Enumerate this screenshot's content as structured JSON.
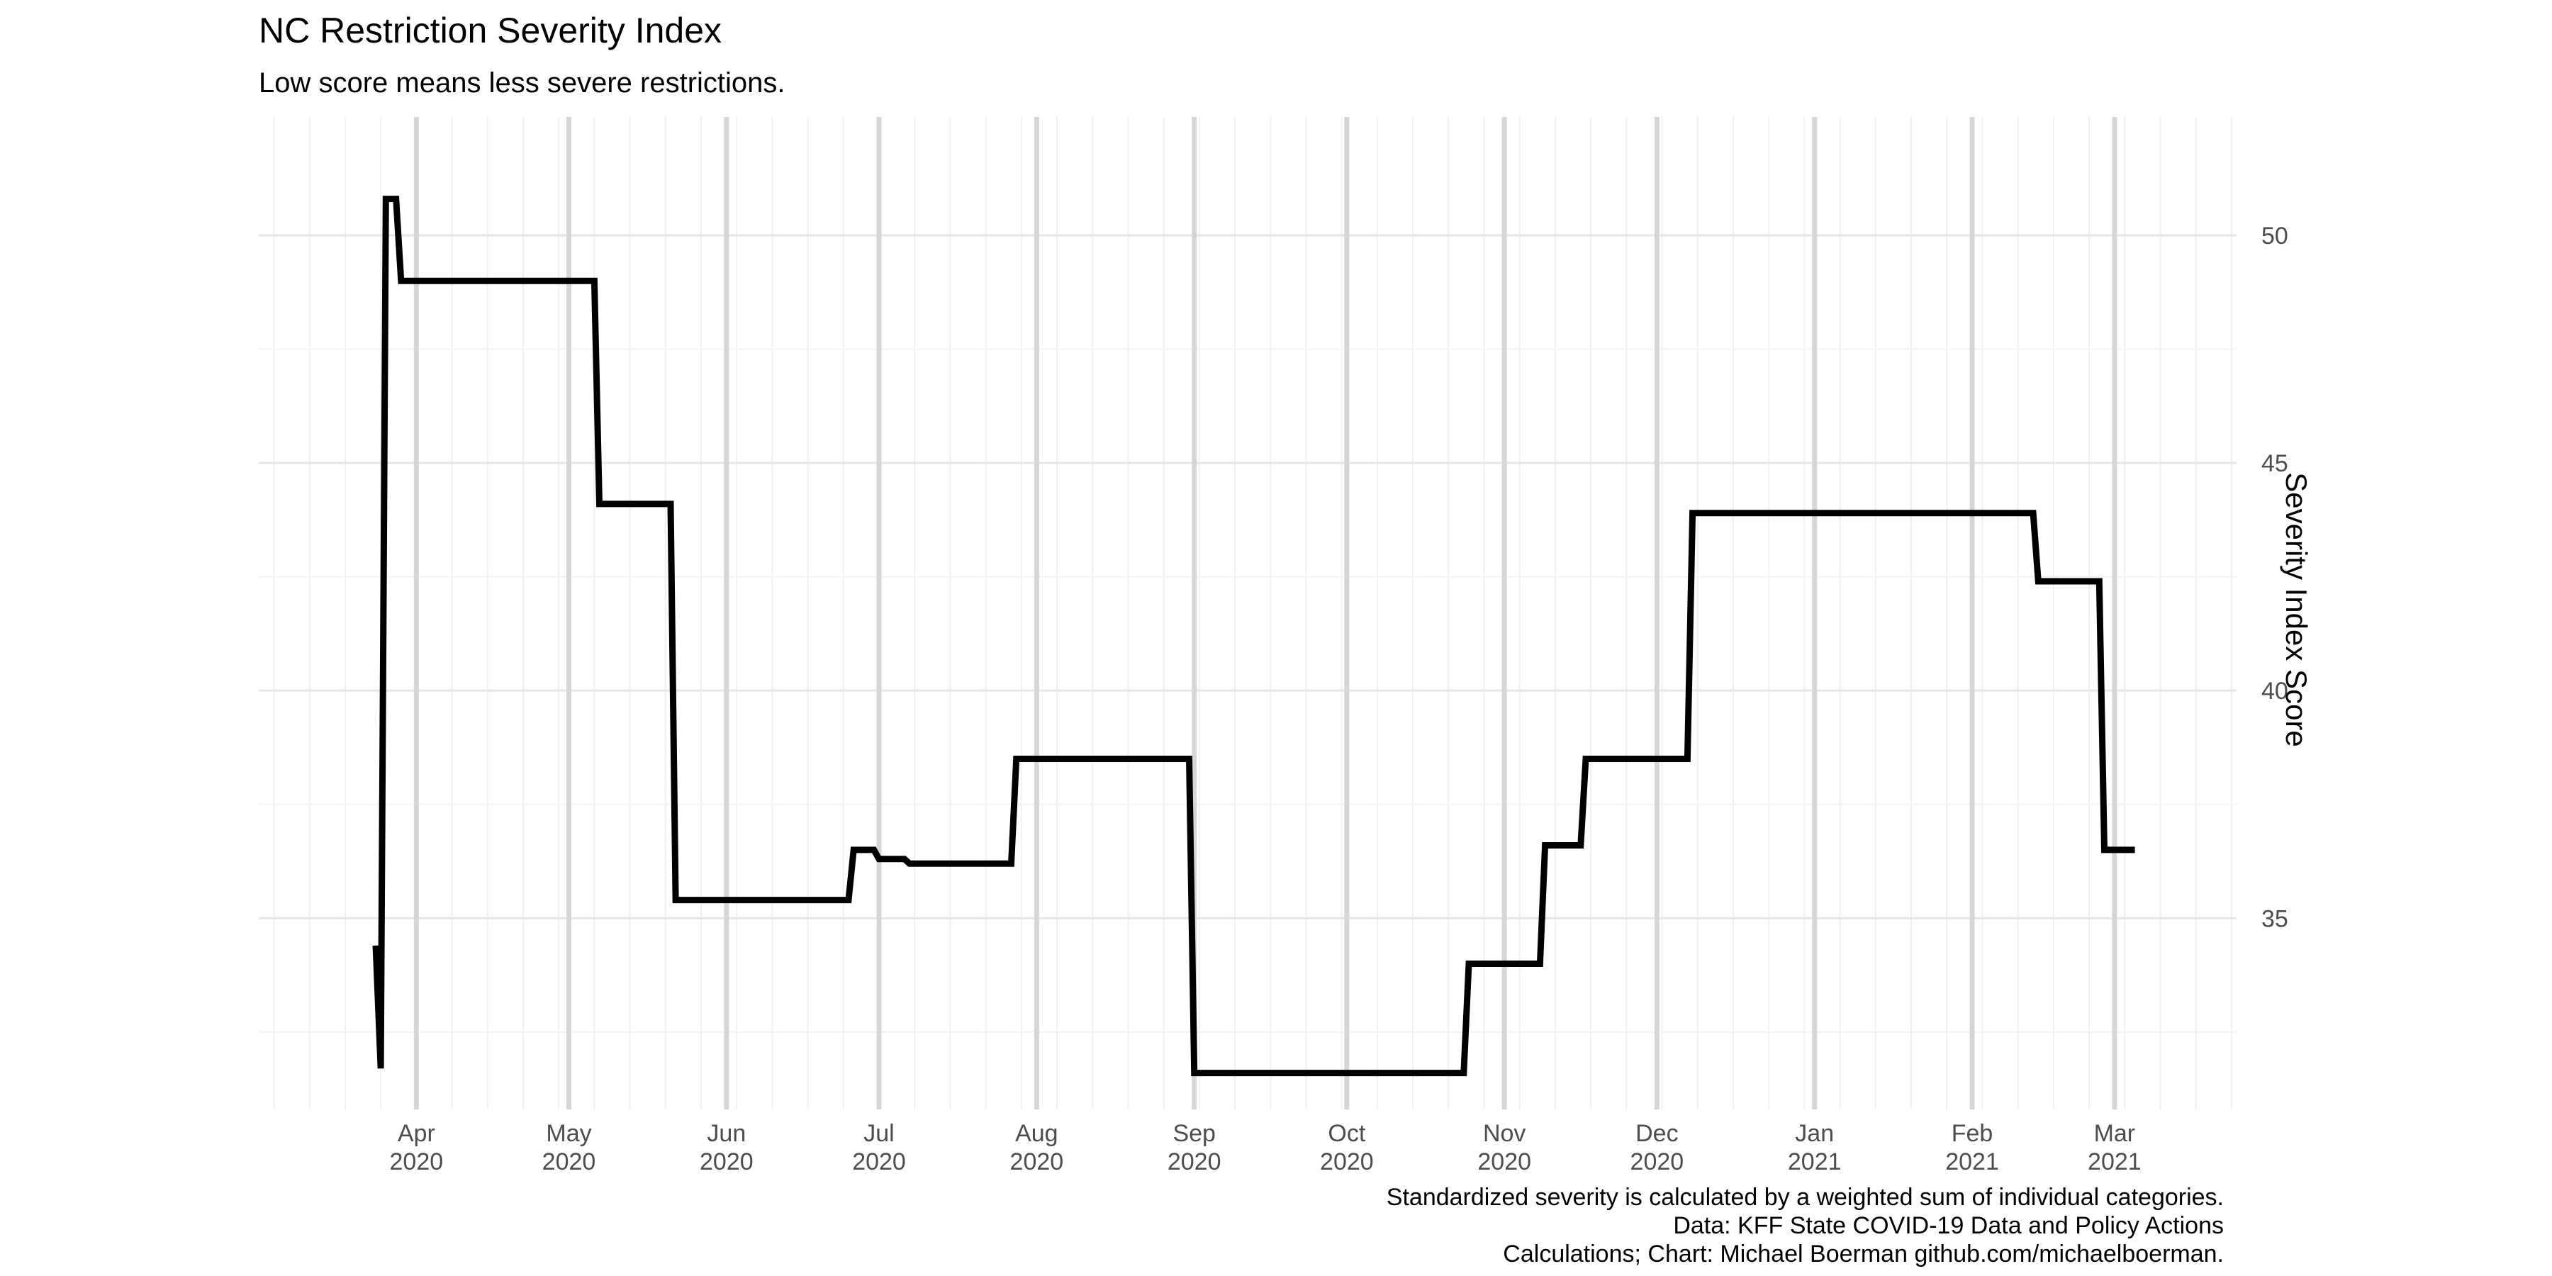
{
  "chart_data": {
    "type": "line",
    "title": "NC Restriction Severity Index",
    "subtitle": "Low score means less severe restrictions.",
    "xlabel": "",
    "ylabel": "Severity Index Score",
    "y_axis_position": "right",
    "ylim": [
      30.8,
      52.6
    ],
    "yticks": [
      35,
      40,
      45,
      50
    ],
    "xlim": [
      "2020-03-01",
      "2021-03-25"
    ],
    "x_major_ticks": [
      {
        "date": "2020-04-01",
        "month": "Apr",
        "year": "2020"
      },
      {
        "date": "2020-05-01",
        "month": "May",
        "year": "2020"
      },
      {
        "date": "2020-06-01",
        "month": "Jun",
        "year": "2020"
      },
      {
        "date": "2020-07-01",
        "month": "Jul",
        "year": "2020"
      },
      {
        "date": "2020-08-01",
        "month": "Aug",
        "year": "2020"
      },
      {
        "date": "2020-09-01",
        "month": "Sep",
        "year": "2020"
      },
      {
        "date": "2020-10-01",
        "month": "Oct",
        "year": "2020"
      },
      {
        "date": "2020-11-01",
        "month": "Nov",
        "year": "2020"
      },
      {
        "date": "2020-12-01",
        "month": "Dec",
        "year": "2020"
      },
      {
        "date": "2021-01-01",
        "month": "Jan",
        "year": "2021"
      },
      {
        "date": "2021-02-01",
        "month": "Feb",
        "year": "2021"
      },
      {
        "date": "2021-03-01",
        "month": "Mar",
        "year": "2021"
      }
    ],
    "grid": true,
    "legend": "none",
    "series_color": "#000000",
    "x": [
      "2020-03-24",
      "2020-03-25",
      "2020-03-26",
      "2020-03-27",
      "2020-03-28",
      "2020-03-29",
      "2020-03-30",
      "2020-05-06",
      "2020-05-07",
      "2020-05-08",
      "2020-05-21",
      "2020-05-22",
      "2020-06-25",
      "2020-06-26",
      "2020-06-30",
      "2020-07-01",
      "2020-07-06",
      "2020-07-07",
      "2020-07-27",
      "2020-07-28",
      "2020-08-31",
      "2020-09-01",
      "2020-10-24",
      "2020-10-25",
      "2020-11-08",
      "2020-11-09",
      "2020-11-16",
      "2020-11-17",
      "2020-12-07",
      "2020-12-08",
      "2021-02-13",
      "2021-02-14",
      "2021-02-26",
      "2021-02-27",
      "2021-03-05"
    ],
    "y": [
      34.4,
      31.7,
      50.8,
      50.8,
      50.8,
      49.0,
      49.0,
      49.0,
      44.1,
      44.1,
      44.1,
      35.4,
      35.4,
      36.5,
      36.5,
      36.3,
      36.3,
      36.2,
      36.2,
      38.5,
      38.5,
      31.6,
      31.6,
      34.0,
      34.0,
      36.6,
      36.6,
      38.5,
      38.5,
      43.9,
      43.9,
      42.4,
      42.4,
      36.5,
      36.5
    ],
    "caption": [
      "Standardized severity is calculated by a weighted sum of individual categories.",
      "Data: KFF State COVID-19 Data and Policy Actions",
      "Calculations; Chart: Michael Boerman github.com/michaelboerman."
    ]
  }
}
